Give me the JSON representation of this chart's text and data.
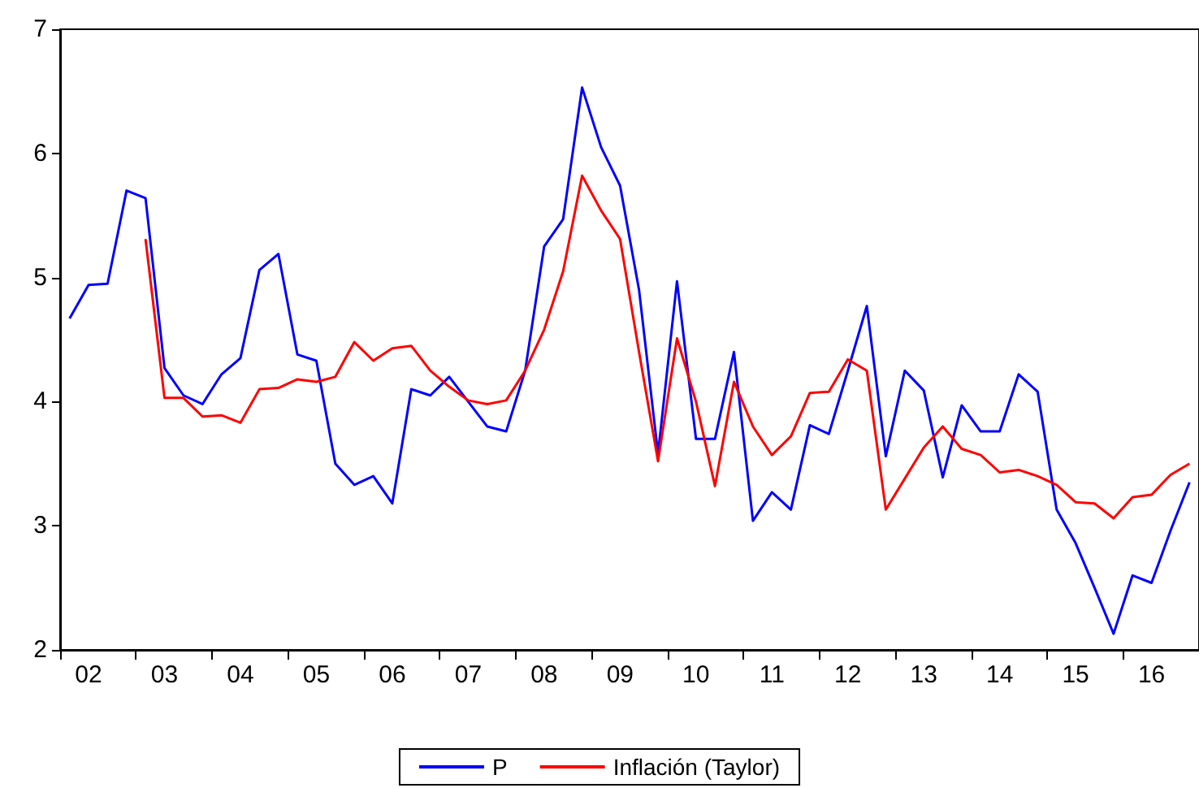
{
  "chart_data": {
    "type": "line",
    "categories": [
      null,
      "02",
      null,
      null,
      null,
      "03",
      null,
      null,
      null,
      "04",
      null,
      null,
      null,
      "05",
      null,
      null,
      null,
      "06",
      null,
      null,
      null,
      "07",
      null,
      null,
      null,
      "08",
      null,
      null,
      null,
      "09",
      null,
      null,
      null,
      "10",
      null,
      null,
      null,
      "11",
      null,
      null,
      null,
      "12",
      null,
      null,
      null,
      "13",
      null,
      null,
      null,
      "14",
      null,
      null,
      null,
      "15",
      null,
      null,
      null,
      "16",
      null,
      null
    ],
    "series": [
      {
        "name": "P",
        "color": "#0000ff",
        "values": [
          4.67,
          4.94,
          4.95,
          5.7,
          5.64,
          4.27,
          4.05,
          3.98,
          4.22,
          4.35,
          5.06,
          5.19,
          4.38,
          4.33,
          3.5,
          3.33,
          3.4,
          3.18,
          4.1,
          4.05,
          4.2,
          4.0,
          3.8,
          3.76,
          4.25,
          5.25,
          5.47,
          6.53,
          6.05,
          5.74,
          4.9,
          3.58,
          4.97,
          3.7,
          3.7,
          4.4,
          3.04,
          3.27,
          3.13,
          3.81,
          3.74,
          4.25,
          4.77,
          3.56,
          4.25,
          4.09,
          3.39,
          3.97,
          3.76,
          3.76,
          4.22,
          4.08,
          3.13,
          2.86,
          2.5,
          2.13,
          2.6,
          2.54,
          2.96,
          3.35
        ]
      },
      {
        "name": "Inflación (Taylor)",
        "color": "#ff0000",
        "values": [
          null,
          null,
          null,
          null,
          5.31,
          4.03,
          4.03,
          3.88,
          3.89,
          3.83,
          4.1,
          4.11,
          4.18,
          4.16,
          4.2,
          4.48,
          4.33,
          4.43,
          4.45,
          4.25,
          4.12,
          4.01,
          3.98,
          4.01,
          4.25,
          4.58,
          5.05,
          5.82,
          5.54,
          5.31,
          4.4,
          3.52,
          4.51,
          4.0,
          3.32,
          4.16,
          3.8,
          3.57,
          3.72,
          4.07,
          4.08,
          4.34,
          4.25,
          3.13,
          3.38,
          3.63,
          3.8,
          3.62,
          3.57,
          3.43,
          3.45,
          3.4,
          3.33,
          3.19,
          3.18,
          3.06,
          3.23,
          3.25,
          3.41,
          3.5
        ]
      }
    ],
    "ylim": [
      2,
      7
    ],
    "yticks": [
      2,
      3,
      4,
      5,
      6,
      7
    ],
    "grid": false,
    "legend": "bottom",
    "marker": "none",
    "line_style": "solid"
  }
}
